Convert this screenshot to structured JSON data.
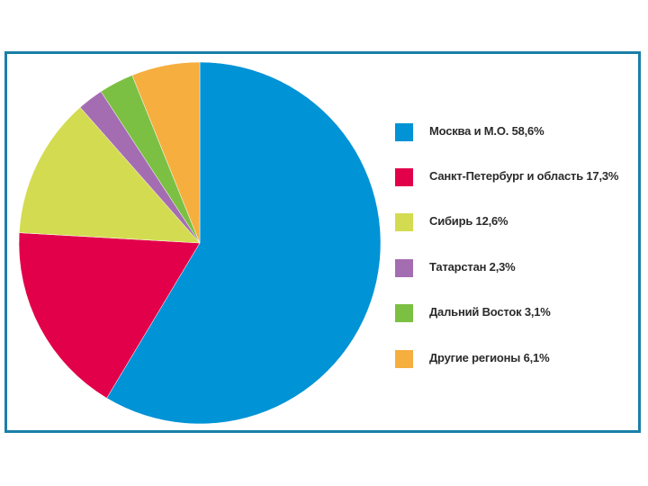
{
  "chart_data": {
    "type": "pie",
    "start_angle_deg": 0,
    "direction": "clockwise",
    "slices": [
      {
        "label": "Москва и М.О. 58,6%",
        "value": 58.6,
        "color": "#0093d5"
      },
      {
        "label": "Санкт-Петербург и область 17,3%",
        "value": 17.3,
        "color": "#e2004a"
      },
      {
        "label": "Сибирь 12,6%",
        "value": 12.6,
        "color": "#d3dc50"
      },
      {
        "label": "Татарстан 2,3%",
        "value": 2.3,
        "color": "#a56db1"
      },
      {
        "label": "Дальний Восток 3,1%",
        "value": 3.1,
        "color": "#7cc043"
      },
      {
        "label": "Другие регионы 6,1%",
        "value": 6.1,
        "color": "#f6ae3f"
      }
    ],
    "legend_position": "right",
    "frame_color": "#1a7fa8"
  }
}
